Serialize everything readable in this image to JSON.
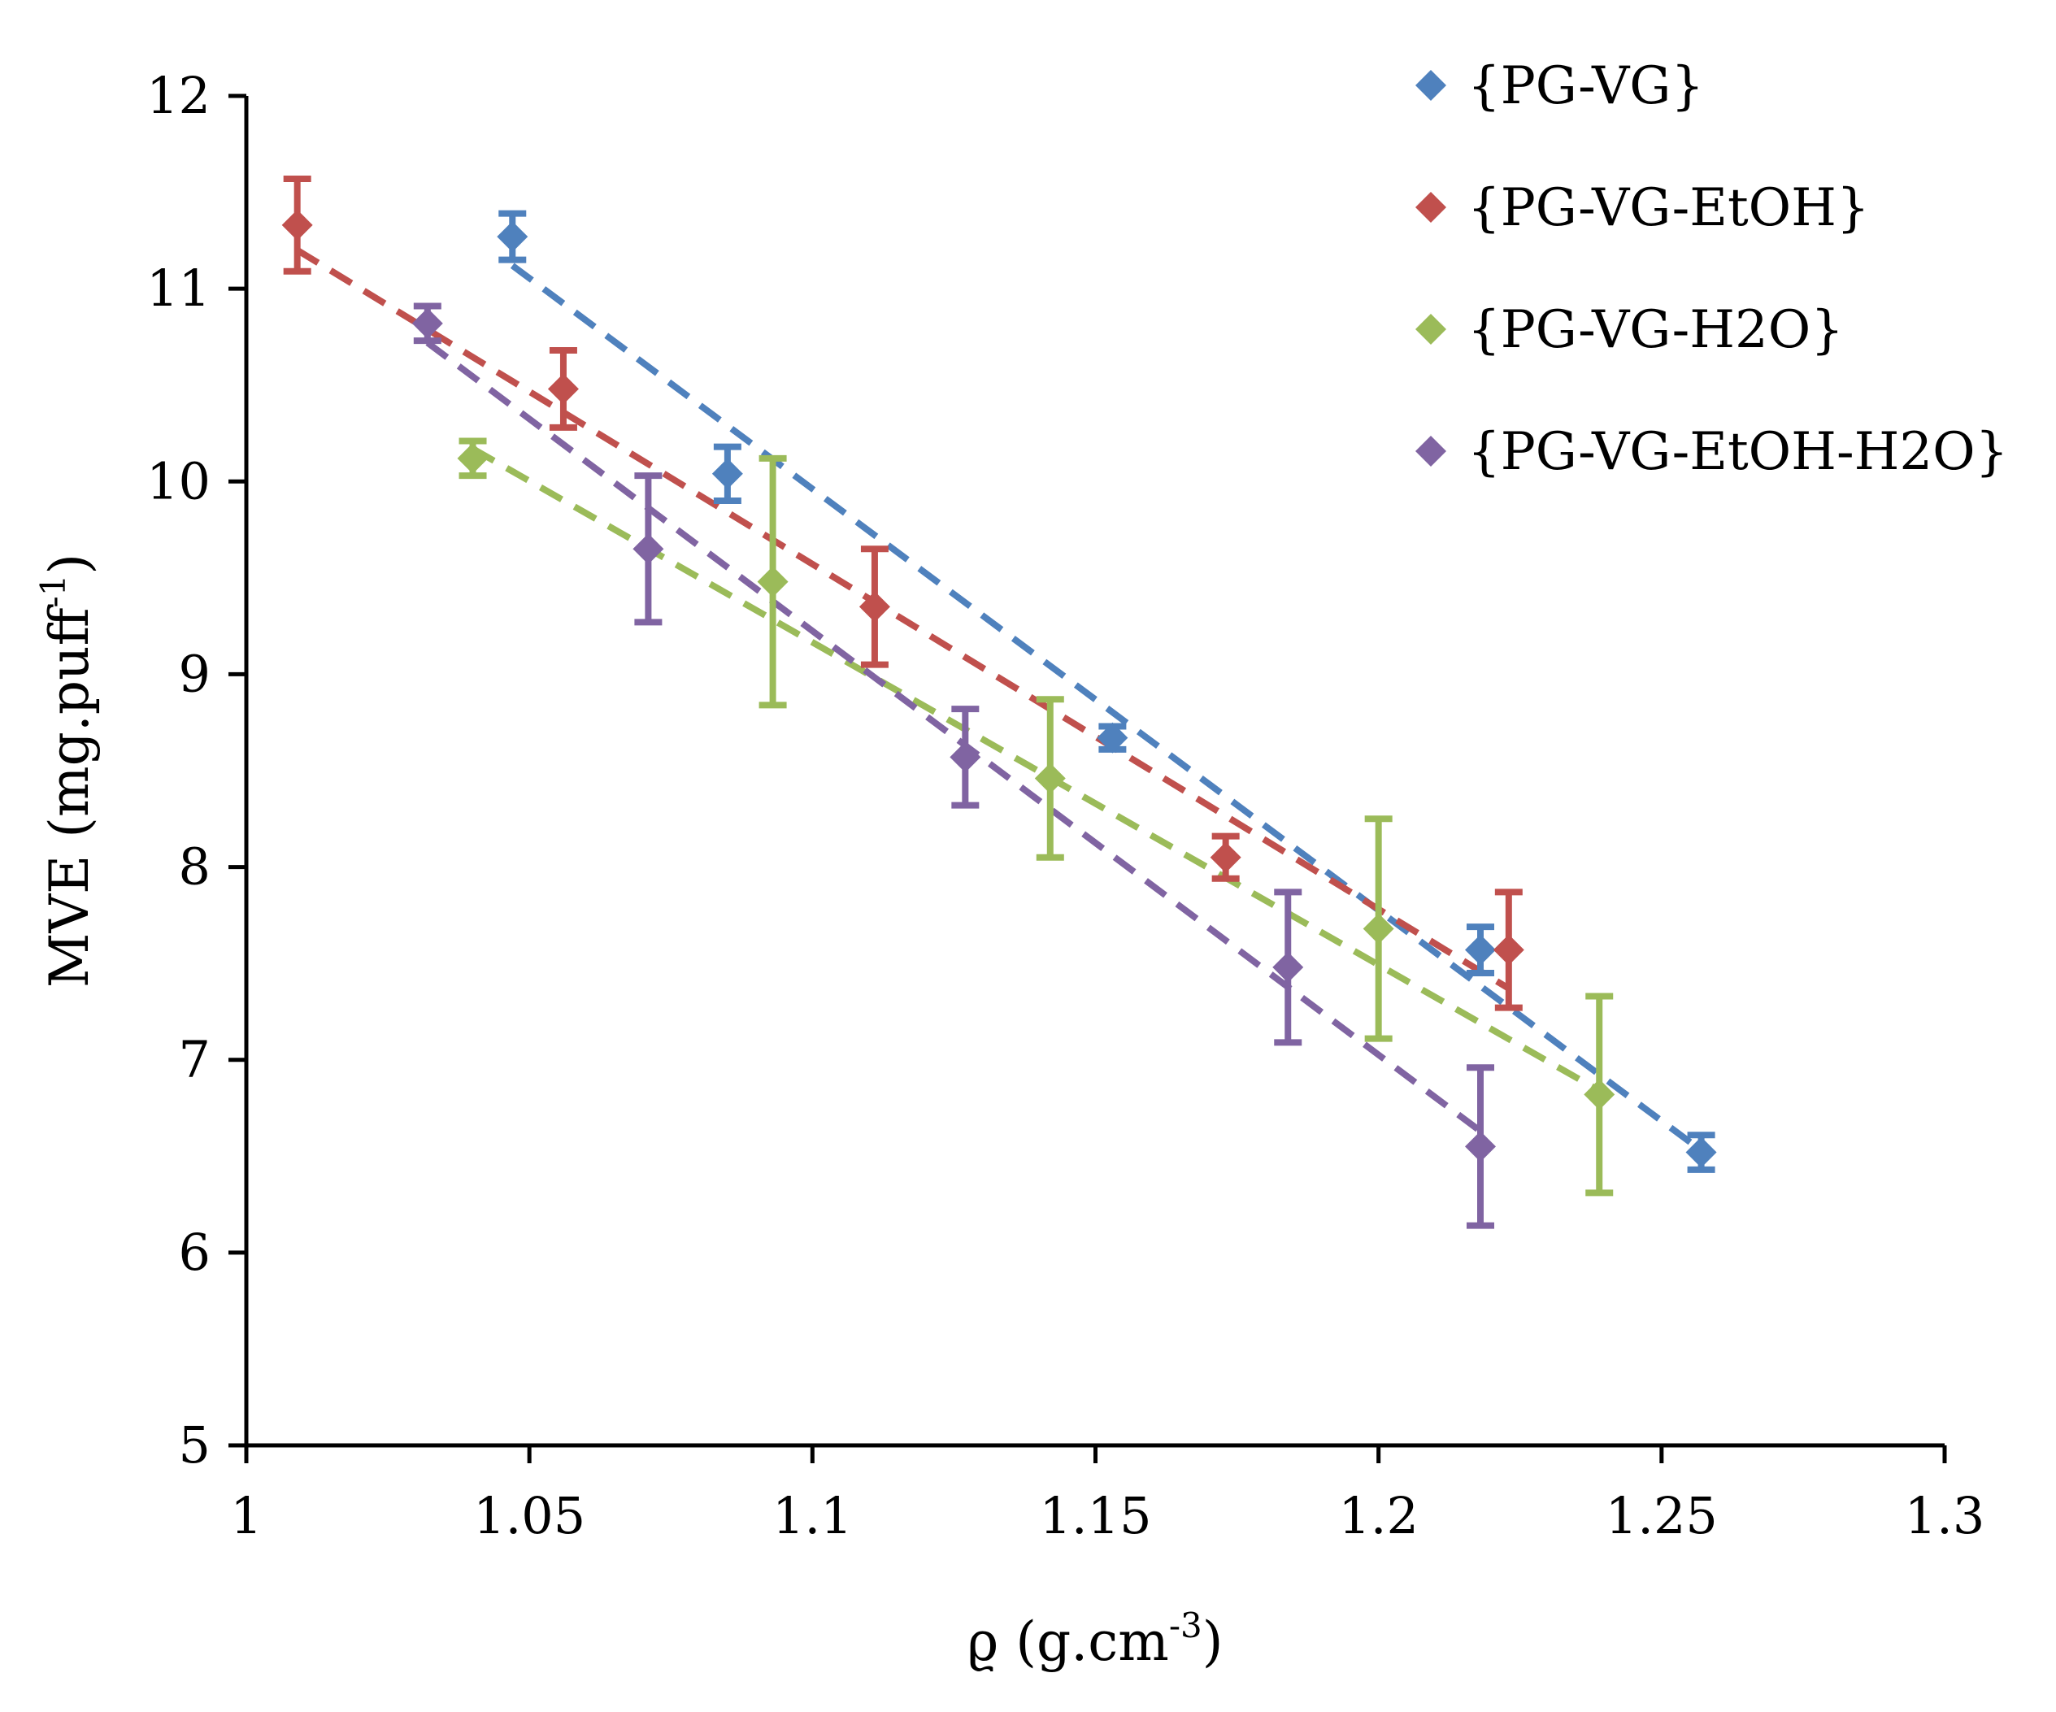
{
  "chart_data": {
    "type": "scatter",
    "title": "",
    "xlabel": "ϱ (g.cm",
    "xlabel_sup": "-3",
    "xlabel_suffix": ")",
    "ylabel": "MVE (mg.puff",
    "ylabel_sup": "-1",
    "ylabel_suffix": ")",
    "xlim": [
      1,
      1.3
    ],
    "ylim": [
      5,
      12
    ],
    "x_ticks": [
      1,
      1.05,
      1.1,
      1.15,
      1.2,
      1.25,
      1.3
    ],
    "x_tick_labels": [
      "1",
      "1.05",
      "1.1",
      "1.15",
      "1.2",
      "1.25",
      "1.3"
    ],
    "y_ticks": [
      5,
      6,
      7,
      8,
      9,
      10,
      11,
      12
    ],
    "y_tick_labels": [
      "5",
      "6",
      "7",
      "8",
      "9",
      "10",
      "11",
      "12"
    ],
    "grid": false,
    "legend_position": "top-right",
    "marker": "diamond",
    "trendline": "linear, dashed",
    "series": [
      {
        "name": "{PG-VG}",
        "color": "#4F81BD",
        "x": [
          1.047,
          1.085,
          1.153,
          1.218,
          1.257
        ],
        "y": [
          11.27,
          10.04,
          8.67,
          7.57,
          6.52
        ],
        "err": [
          0.12,
          0.14,
          0.06,
          0.12,
          0.09
        ],
        "trend_x": [
          1.047,
          1.257
        ],
        "trend_y": [
          11.12,
          6.53
        ]
      },
      {
        "name": "{PG-VG-EtOH}",
        "color": "#C0504D",
        "x": [
          1.009,
          1.056,
          1.111,
          1.173,
          1.223
        ],
        "y": [
          11.33,
          10.48,
          9.35,
          8.05,
          7.57
        ],
        "err": [
          0.24,
          0.2,
          0.3,
          0.11,
          0.3
        ],
        "trend_x": [
          1.009,
          1.223
        ],
        "trend_y": [
          11.2,
          7.37
        ]
      },
      {
        "name": "{PG-VG-H2O}",
        "color": "#9BBB59",
        "x": [
          1.04,
          1.093,
          1.142,
          1.2,
          1.239
        ],
        "y": [
          10.12,
          9.48,
          8.46,
          7.68,
          6.82
        ],
        "err": [
          0.09,
          0.64,
          0.41,
          0.57,
          0.51
        ],
        "trend_x": [
          1.04,
          1.239
        ],
        "trend_y": [
          10.17,
          6.84
        ]
      },
      {
        "name": "{PG-VG-EtOH-H2O}",
        "color": "#8064A2",
        "x": [
          1.032,
          1.071,
          1.127,
          1.184,
          1.218
        ],
        "y": [
          10.82,
          9.65,
          8.57,
          7.48,
          6.55
        ],
        "err": [
          0.09,
          0.38,
          0.25,
          0.39,
          0.41
        ],
        "trend_x": [
          1.032,
          1.218
        ],
        "trend_y": [
          10.72,
          6.63
        ]
      }
    ]
  }
}
